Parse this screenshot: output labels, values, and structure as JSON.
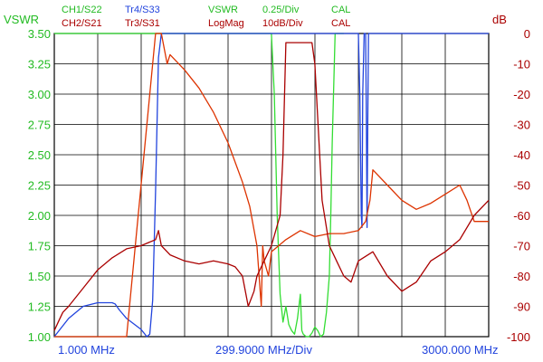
{
  "header": {
    "row1": [
      {
        "text": "CH1/S22",
        "color": "#22bb22"
      },
      {
        "text": "Tr4/S33",
        "color": "#2244dd"
      },
      {
        "text": "VSWR",
        "color": "#22bb22"
      },
      {
        "text": "0.25/Div",
        "color": "#22bb22"
      },
      {
        "text": "CAL",
        "color": "#22bb22"
      }
    ],
    "row2": [
      {
        "text": "CH2/S21",
        "color": "#aa0000"
      },
      {
        "text": "Tr3/S31",
        "color": "#aa0000"
      },
      {
        "text": "LogMag",
        "color": "#aa0000"
      },
      {
        "text": "10dB/Div",
        "color": "#aa0000"
      },
      {
        "text": "CAL",
        "color": "#aa0000"
      }
    ]
  },
  "axes": {
    "left_label": "VSWR",
    "right_label": "dB",
    "left_color": "#22bb22",
    "right_color": "#aa0000",
    "x_color": "#2244dd",
    "x_start": "1.000 MHz",
    "x_div": "299.9000 MHz/Div",
    "x_stop": "3000.000 MHz"
  },
  "chart_data": {
    "type": "line",
    "xlim": [
      1,
      3000
    ],
    "ylim_left": [
      1.0,
      3.5
    ],
    "ylim_right": [
      -100,
      0
    ],
    "grid": true,
    "left_ticks": [
      "3.50",
      "3.25",
      "3.00",
      "2.75",
      "2.50",
      "2.25",
      "2.00",
      "1.75",
      "1.50",
      "1.25",
      "1.00"
    ],
    "right_ticks": [
      "0",
      "-10",
      "-20",
      "-30",
      "-40",
      "-50",
      "-60",
      "-70",
      "-80",
      "-90",
      "-100"
    ],
    "series": [
      {
        "name": "CH1/S22",
        "axis": "left",
        "color": "#33dd33",
        "x": [
          1,
          600,
          1500,
          1520,
          1540,
          1560,
          1580,
          1600,
          1620,
          1640,
          1660,
          1680,
          1700,
          1710,
          1720,
          1740,
          1760,
          1780,
          1800,
          1820,
          1840,
          1860,
          1880,
          1900,
          1910,
          1920,
          1940,
          2000
        ],
        "y": [
          3.5,
          3.5,
          3.5,
          3.0,
          2.0,
          1.35,
          1.12,
          1.25,
          1.1,
          1.05,
          1.02,
          1.15,
          1.35,
          1.05,
          1.02,
          1.0,
          1.0,
          1.03,
          1.08,
          1.05,
          1.0,
          1.02,
          1.2,
          1.5,
          2.0,
          2.6,
          3.5,
          3.5
        ]
      },
      {
        "name": "Tr4/S33",
        "axis": "left",
        "color": "#2244dd",
        "x": [
          1,
          100,
          200,
          300,
          400,
          420,
          450,
          500,
          600,
          620,
          640,
          660,
          680,
          700,
          720,
          740,
          760,
          800,
          1000,
          2100,
          2110,
          2120,
          2125,
          2130,
          2140,
          2150,
          2155,
          2160,
          2165,
          2170,
          2180,
          3000
        ],
        "y": [
          1.0,
          1.15,
          1.25,
          1.28,
          1.28,
          1.27,
          1.22,
          1.15,
          1.06,
          1.03,
          1.0,
          1.02,
          1.3,
          2.2,
          3.3,
          3.5,
          3.5,
          3.5,
          3.5,
          3.5,
          3.0,
          2.0,
          1.9,
          3.0,
          3.5,
          3.5,
          2.8,
          1.9,
          2.8,
          3.5,
          3.5,
          3.5
        ]
      },
      {
        "name": "CH2/S21",
        "axis": "right",
        "color": "#dd3300",
        "x": [
          1,
          100,
          200,
          300,
          500,
          700,
          740,
          760,
          780,
          800,
          900,
          1000,
          1100,
          1200,
          1300,
          1350,
          1400,
          1430,
          1440,
          1450,
          1480,
          1500,
          1600,
          1700,
          1800,
          1900,
          1950,
          2000,
          2100,
          2150,
          2180,
          2200,
          2300,
          2400,
          2500,
          2600,
          2700,
          2800,
          2850,
          2900,
          3000
        ],
        "y": [
          -100,
          -100,
          -100,
          -100,
          -100,
          0,
          0,
          -5,
          -10,
          -7,
          -12,
          -18,
          -26,
          -36,
          -49,
          -57,
          -70,
          -90,
          -70,
          -75,
          -80,
          -72,
          -68,
          -65,
          -67,
          -66,
          -66,
          -66,
          -65,
          -62,
          -55,
          -45,
          -50,
          -55,
          -58,
          -56,
          -53,
          -50,
          -55,
          -62,
          -62
        ]
      },
      {
        "name": "Tr3/S31",
        "axis": "right",
        "color": "#aa0000",
        "x": [
          1,
          30,
          60,
          100,
          200,
          300,
          400,
          500,
          600,
          650,
          700,
          720,
          740,
          800,
          900,
          1000,
          1100,
          1200,
          1250,
          1300,
          1320,
          1340,
          1380,
          1400,
          1450,
          1500,
          1560,
          1580,
          1600,
          1650,
          1700,
          1720,
          1740,
          1760,
          1780,
          1800,
          1850,
          1900,
          1950,
          2000,
          2050,
          2100,
          2200,
          2300,
          2400,
          2500,
          2600,
          2700,
          2800,
          2900,
          3000
        ],
        "y": [
          -98,
          -95,
          -92,
          -90,
          -84,
          -78,
          -74,
          -71,
          -70,
          -69,
          -68,
          -65,
          -70,
          -73,
          -75,
          -76,
          -75,
          -76,
          -77,
          -80,
          -85,
          -90,
          -85,
          -80,
          -75,
          -70,
          -60,
          -40,
          -3,
          -3,
          -3,
          -3,
          -3,
          -3,
          -3,
          -10,
          -55,
          -70,
          -75,
          -80,
          -82,
          -75,
          -72,
          -80,
          -85,
          -82,
          -75,
          -72,
          -68,
          -60,
          -55
        ]
      }
    ]
  }
}
